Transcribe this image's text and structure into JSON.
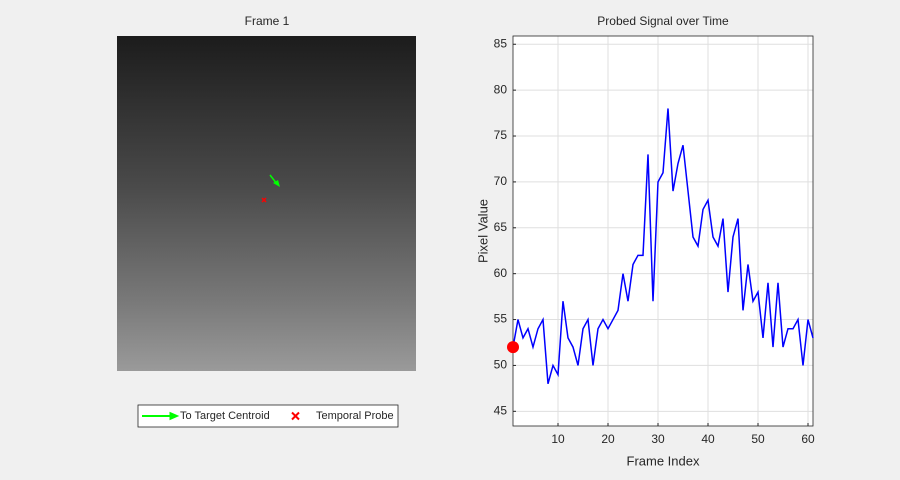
{
  "chart_data": [
    {
      "type": "image",
      "title": "Frame 1",
      "legend": [
        {
          "label": "To Target Centroid",
          "color": "#00ff00"
        },
        {
          "label": "Temporal Probe",
          "color": "#ff0000"
        }
      ]
    },
    {
      "type": "line",
      "title": "Probed Signal over Time",
      "xlabel": "Frame Index",
      "ylabel": "Pixel Value",
      "x": [
        1,
        2,
        3,
        4,
        5,
        6,
        7,
        8,
        9,
        10,
        11,
        12,
        13,
        14,
        15,
        16,
        17,
        18,
        19,
        20,
        21,
        22,
        23,
        24,
        25,
        26,
        27,
        28,
        29,
        30,
        31,
        32,
        33,
        34,
        35,
        36,
        37,
        38,
        39,
        40,
        41,
        42,
        43,
        44,
        45,
        46,
        47,
        48,
        49,
        50,
        51,
        52,
        53,
        54,
        55,
        56,
        57,
        58,
        59,
        60,
        61
      ],
      "series": [
        {
          "color": "#0000ff",
          "values": [
            52,
            55,
            53,
            54,
            52,
            54,
            55,
            48,
            50,
            49,
            57,
            53,
            52,
            50,
            54,
            55,
            50,
            54,
            55,
            54,
            55,
            56,
            60,
            57,
            61,
            62,
            62,
            73,
            57,
            70,
            71,
            78,
            69,
            72,
            74,
            69,
            64,
            63,
            67,
            68,
            64,
            63,
            66,
            58,
            64,
            66,
            56,
            61,
            57,
            58,
            53,
            59,
            52,
            59,
            52,
            54,
            54,
            55,
            50,
            55,
            53
          ]
        }
      ],
      "probe_color": "#ff0000",
      "xlim": [
        1,
        61
      ],
      "ylim": [
        43.4,
        85.9
      ],
      "xticks": [
        10,
        20,
        30,
        40,
        50,
        60
      ],
      "yticks": [
        45,
        50,
        55,
        60,
        65,
        70,
        75,
        80,
        85
      ],
      "grid": true
    }
  ]
}
